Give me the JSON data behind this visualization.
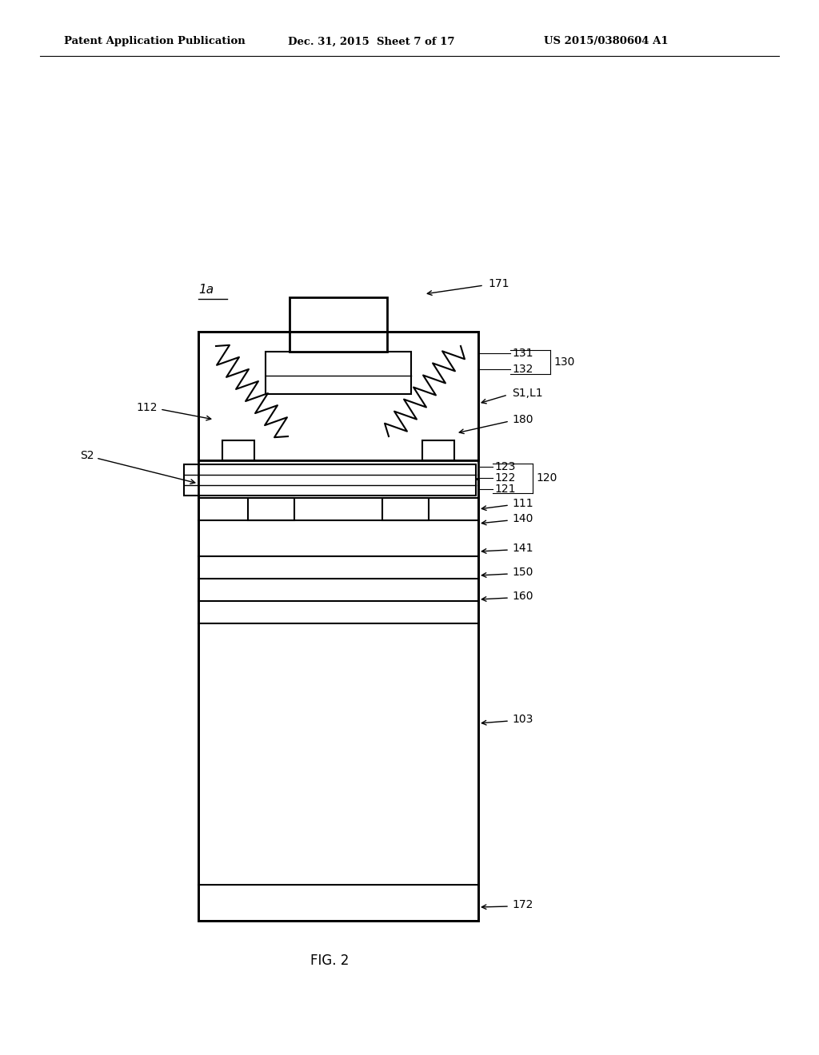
{
  "bg_color": "#ffffff",
  "line_color": "#000000",
  "fig_width": 10.24,
  "fig_height": 13.2,
  "header_left": "Patent Application Publication",
  "header_mid": "Dec. 31, 2015  Sheet 7 of 17",
  "header_right": "US 2015/0380604 A1",
  "fig_label": "FIG. 2",
  "device_label": "1a"
}
